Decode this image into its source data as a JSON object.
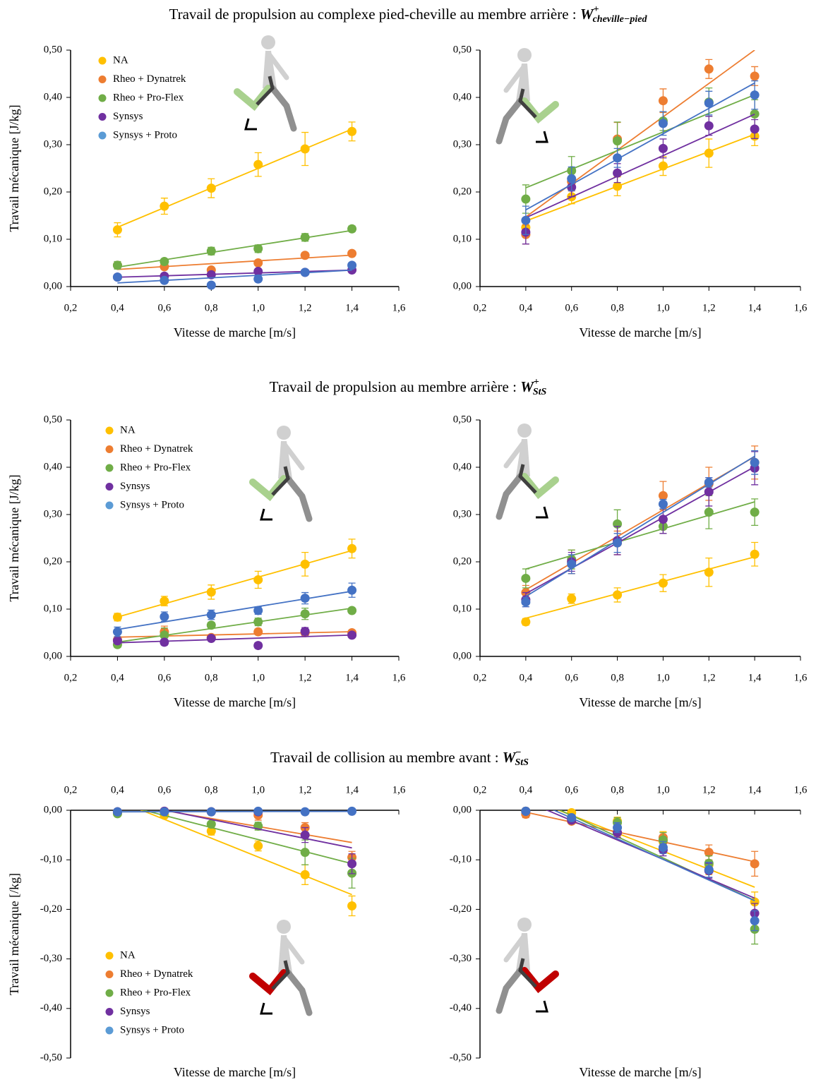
{
  "sections": [
    {
      "text": "Travail de propulsion au complexe pied-cheville au membre arrière : ",
      "symbol": "W",
      "sup": "+",
      "sub": "cheville−pied"
    },
    {
      "text": "Travail de propulsion au membre arrière : ",
      "symbol": "W",
      "sup": "+",
      "sub": "StS"
    },
    {
      "text": "Travail de collision au membre avant : ",
      "symbol": "W",
      "sup": "−",
      "sub": "StS"
    }
  ],
  "chart_data": [
    {
      "type": "scatter",
      "ylabel": "Travail mécanique [J/kg]",
      "xlabel": "Vitesse de marche [m/s]",
      "trendline": "linear",
      "legend": "upper left",
      "xtick_position": "bottom",
      "x": [
        0.4,
        0.6,
        0.8,
        1.0,
        1.2,
        1.4
      ],
      "xlim": [
        0.2,
        1.6
      ],
      "xticks": [
        {
          "value": 0.2,
          "label": "0,2"
        },
        {
          "value": 0.4,
          "label": "0,4"
        },
        {
          "value": 0.6,
          "label": "0,6"
        },
        {
          "value": 0.8,
          "label": "0,8"
        },
        {
          "value": 1.0,
          "label": "1,0"
        },
        {
          "value": 1.2,
          "label": "1,2"
        },
        {
          "value": 1.4,
          "label": "1,4"
        },
        {
          "value": 1.6,
          "label": "1,6"
        }
      ],
      "ylim": [
        0,
        0.5
      ],
      "yticks": [
        {
          "value": 0,
          "label": "0,00"
        },
        {
          "value": 0.1,
          "label": "0,10"
        },
        {
          "value": 0.2,
          "label": "0,20"
        },
        {
          "value": 0.3,
          "label": "0,30"
        },
        {
          "value": 0.4,
          "label": "0,40"
        },
        {
          "value": 0.5,
          "label": "0,50"
        }
      ],
      "series": [
        {
          "name": "NA",
          "color": "#ffc000",
          "values": [
            0.12,
            0.17,
            0.208,
            0.258,
            0.291,
            0.328
          ],
          "errors": [
            0.015,
            0.017,
            0.02,
            0.025,
            0.035,
            0.02
          ]
        },
        {
          "name": "Rheo + Dynatrek",
          "color": "#ed7d31",
          "values": [
            0.045,
            0.042,
            0.035,
            0.05,
            0.066,
            0.07
          ],
          "errors": [
            0.005,
            0.005,
            0.005,
            0.005,
            0.005,
            0.005
          ]
        },
        {
          "name": "Rheo + Pro-Flex",
          "color": "#70ad47",
          "values": [
            0.045,
            0.053,
            0.075,
            0.08,
            0.104,
            0.122
          ],
          "errors": [
            0.008,
            0.005,
            0.008,
            0.008,
            0.008,
            0.006
          ]
        },
        {
          "name": "Synsys",
          "color": "#7030a0",
          "values": [
            0.02,
            0.022,
            0.025,
            0.032,
            0.03,
            0.035
          ],
          "errors": [
            0.005,
            0.004,
            0.005,
            0.005,
            0.005,
            0.005
          ]
        },
        {
          "name": "Synsys + Proto",
          "color": "#4472c4",
          "values": [
            0.02,
            0.013,
            0.003,
            0.016,
            0.03,
            0.045
          ],
          "errors": [
            0.005,
            0.005,
            0.003,
            0.005,
            0.005,
            0.005
          ]
        }
      ]
    },
    {
      "type": "scatter",
      "xlabel": "Vitesse de marche [m/s]",
      "trendline": "linear",
      "xtick_position": "bottom",
      "x": [
        0.4,
        0.6,
        0.8,
        1.0,
        1.2,
        1.4
      ],
      "xlim": [
        0.2,
        1.6
      ],
      "xticks": [
        {
          "value": 0.2,
          "label": "0,2"
        },
        {
          "value": 0.4,
          "label": "0,4"
        },
        {
          "value": 0.6,
          "label": "0,6"
        },
        {
          "value": 0.8,
          "label": "0,8"
        },
        {
          "value": 1.0,
          "label": "1,0"
        },
        {
          "value": 1.2,
          "label": "1,2"
        },
        {
          "value": 1.4,
          "label": "1,4"
        },
        {
          "value": 1.6,
          "label": "1,6"
        }
      ],
      "ylim": [
        0,
        0.5
      ],
      "yticks": [
        {
          "value": 0,
          "label": "0,00"
        },
        {
          "value": 0.1,
          "label": "0,10"
        },
        {
          "value": 0.2,
          "label": "0,20"
        },
        {
          "value": 0.3,
          "label": "0,30"
        },
        {
          "value": 0.4,
          "label": "0,40"
        },
        {
          "value": 0.5,
          "label": "0,50"
        }
      ],
      "series": [
        {
          "color": "#ffc000",
          "values": [
            0.125,
            0.19,
            0.212,
            0.255,
            0.282,
            0.318
          ],
          "errors": [
            0.012,
            0.015,
            0.02,
            0.02,
            0.03,
            0.02
          ]
        },
        {
          "color": "#ed7d31",
          "values": [
            0.11,
            0.222,
            0.312,
            0.393,
            0.46,
            0.445
          ],
          "errors": [
            0.02,
            0.02,
            0.035,
            0.025,
            0.02,
            0.02
          ]
        },
        {
          "color": "#70ad47",
          "values": [
            0.185,
            0.245,
            0.308,
            0.35,
            0.39,
            0.365
          ],
          "errors": [
            0.03,
            0.03,
            0.04,
            0.02,
            0.03,
            0.03
          ]
        },
        {
          "color": "#7030a0",
          "values": [
            0.115,
            0.21,
            0.24,
            0.292,
            0.34,
            0.333
          ],
          "errors": [
            0.025,
            0.02,
            0.02,
            0.02,
            0.02,
            0.02
          ]
        },
        {
          "color": "#4472c4",
          "values": [
            0.14,
            0.228,
            0.272,
            0.345,
            0.388,
            0.405
          ],
          "errors": [
            0.03,
            0.025,
            0.02,
            0.025,
            0.025,
            0.03
          ]
        }
      ]
    },
    {
      "type": "scatter",
      "ylabel": "Travail mécanique [J/kg]",
      "xlabel": "Vitesse de marche [m/s]",
      "trendline": "linear",
      "legend": "upper left",
      "xtick_position": "bottom",
      "x": [
        0.4,
        0.6,
        0.8,
        1.0,
        1.2,
        1.4
      ],
      "xlim": [
        0.2,
        1.6
      ],
      "xticks": [
        {
          "value": 0.2,
          "label": "0,2"
        },
        {
          "value": 0.4,
          "label": "0,4"
        },
        {
          "value": 0.6,
          "label": "0,6"
        },
        {
          "value": 0.8,
          "label": "0,8"
        },
        {
          "value": 1.0,
          "label": "1,0"
        },
        {
          "value": 1.2,
          "label": "1,2"
        },
        {
          "value": 1.4,
          "label": "1,4"
        },
        {
          "value": 1.6,
          "label": "1,6"
        }
      ],
      "ylim": [
        0,
        0.5
      ],
      "yticks": [
        {
          "value": 0,
          "label": "0,00"
        },
        {
          "value": 0.1,
          "label": "0,10"
        },
        {
          "value": 0.2,
          "label": "0,20"
        },
        {
          "value": 0.3,
          "label": "0,30"
        },
        {
          "value": 0.4,
          "label": "0,40"
        },
        {
          "value": 0.5,
          "label": "0,50"
        }
      ],
      "series": [
        {
          "name": "NA",
          "color": "#ffc000",
          "values": [
            0.083,
            0.117,
            0.136,
            0.162,
            0.195,
            0.228
          ],
          "errors": [
            0.008,
            0.01,
            0.015,
            0.018,
            0.025,
            0.02
          ]
        },
        {
          "name": "Rheo + Dynatrek",
          "color": "#ed7d31",
          "values": [
            0.035,
            0.052,
            0.04,
            0.052,
            0.05,
            0.05
          ],
          "errors": [
            0.005,
            0.012,
            0.005,
            0.006,
            0.005,
            0.005
          ]
        },
        {
          "name": "Rheo + Pro-Flex",
          "color": "#70ad47",
          "values": [
            0.025,
            0.045,
            0.066,
            0.073,
            0.09,
            0.097
          ],
          "errors": [
            0.006,
            0.015,
            0.006,
            0.008,
            0.012,
            0.005
          ]
        },
        {
          "name": "Synsys",
          "color": "#7030a0",
          "values": [
            0.033,
            0.03,
            0.038,
            0.023,
            0.053,
            0.045
          ],
          "errors": [
            0.006,
            0.006,
            0.005,
            0.006,
            0.008,
            0.005
          ]
        },
        {
          "name": "Synsys + Proto",
          "color": "#4472c4",
          "values": [
            0.052,
            0.084,
            0.088,
            0.097,
            0.123,
            0.14
          ],
          "errors": [
            0.01,
            0.01,
            0.01,
            0.008,
            0.012,
            0.015
          ]
        }
      ]
    },
    {
      "type": "scatter",
      "xlabel": "Vitesse de marche [m/s]",
      "trendline": "linear",
      "xtick_position": "bottom",
      "x": [
        0.4,
        0.6,
        0.8,
        1.0,
        1.2,
        1.4
      ],
      "xlim": [
        0.2,
        1.6
      ],
      "xticks": [
        {
          "value": 0.2,
          "label": "0,2"
        },
        {
          "value": 0.4,
          "label": "0,4"
        },
        {
          "value": 0.6,
          "label": "0,6"
        },
        {
          "value": 0.8,
          "label": "0,8"
        },
        {
          "value": 1.0,
          "label": "1,0"
        },
        {
          "value": 1.2,
          "label": "1,2"
        },
        {
          "value": 1.4,
          "label": "1,4"
        },
        {
          "value": 1.6,
          "label": "1,6"
        }
      ],
      "ylim": [
        0,
        0.5
      ],
      "yticks": [
        {
          "value": 0,
          "label": "0,00"
        },
        {
          "value": 0.1,
          "label": "0,10"
        },
        {
          "value": 0.2,
          "label": "0,20"
        },
        {
          "value": 0.3,
          "label": "0,30"
        },
        {
          "value": 0.4,
          "label": "0,40"
        },
        {
          "value": 0.5,
          "label": "0,50"
        }
      ],
      "series": [
        {
          "color": "#ffc000",
          "values": [
            0.073,
            0.122,
            0.13,
            0.155,
            0.178,
            0.216
          ],
          "errors": [
            0.007,
            0.01,
            0.015,
            0.018,
            0.03,
            0.025
          ]
        },
        {
          "color": "#ed7d31",
          "values": [
            0.135,
            0.2,
            0.24,
            0.34,
            0.365,
            0.41
          ],
          "errors": [
            0.015,
            0.025,
            0.025,
            0.03,
            0.035,
            0.035
          ]
        },
        {
          "color": "#70ad47",
          "values": [
            0.165,
            0.205,
            0.28,
            0.275,
            0.305,
            0.305
          ],
          "errors": [
            0.02,
            0.02,
            0.03,
            0.015,
            0.035,
            0.028
          ]
        },
        {
          "color": "#7030a0",
          "values": [
            0.12,
            0.2,
            0.245,
            0.29,
            0.348,
            0.398
          ],
          "errors": [
            0.015,
            0.02,
            0.03,
            0.03,
            0.03,
            0.035
          ]
        },
        {
          "color": "#4472c4",
          "values": [
            0.115,
            0.195,
            0.24,
            0.322,
            0.368,
            0.41
          ],
          "errors": [
            0.01,
            0.02,
            0.02,
            0.01,
            0.01,
            0.025
          ]
        }
      ]
    },
    {
      "type": "scatter",
      "ylabel": "Travail mécanique [/kg]",
      "xlabel": "Vitesse de marche [m/s]",
      "trendline": "linear",
      "legend": "lower left",
      "xtick_position": "top",
      "x": [
        0.4,
        0.6,
        0.8,
        1.0,
        1.2,
        1.4
      ],
      "xlim": [
        0.2,
        1.6
      ],
      "xticks": [
        {
          "value": 0.2,
          "label": "0,2"
        },
        {
          "value": 0.4,
          "label": "0,4"
        },
        {
          "value": 0.6,
          "label": "0,6"
        },
        {
          "value": 0.8,
          "label": "0,8"
        },
        {
          "value": 1.0,
          "label": "1,0"
        },
        {
          "value": 1.2,
          "label": "1,2"
        },
        {
          "value": 1.4,
          "label": "1,4"
        },
        {
          "value": 1.6,
          "label": "1,6"
        }
      ],
      "ylim": [
        -0.5,
        0
      ],
      "yticks": [
        {
          "value": -0.5,
          "label": "-0,50"
        },
        {
          "value": -0.4,
          "label": "-0,40"
        },
        {
          "value": -0.3,
          "label": "-0,30"
        },
        {
          "value": -0.2,
          "label": "-0,20"
        },
        {
          "value": -0.1,
          "label": "-0,10"
        },
        {
          "value": 0,
          "label": "0,00"
        }
      ],
      "series": [
        {
          "name": "NA",
          "color": "#ffc000",
          "values": [
            -0.005,
            -0.01,
            -0.042,
            -0.072,
            -0.13,
            -0.193
          ],
          "errors": [
            0.003,
            0.005,
            0.008,
            0.01,
            0.02,
            0.02
          ]
        },
        {
          "name": "Rheo + Dynatrek",
          "color": "#ed7d31",
          "values": [
            -0.003,
            -0.002,
            -0.003,
            -0.01,
            -0.035,
            -0.095
          ],
          "errors": [
            0.003,
            0.002,
            0.003,
            0.01,
            0.01,
            0.012
          ]
        },
        {
          "name": "Rheo + Pro-Flex",
          "color": "#70ad47",
          "values": [
            -0.007,
            -0.003,
            -0.028,
            -0.032,
            -0.085,
            -0.127
          ],
          "errors": [
            0.003,
            0.002,
            0.005,
            0.008,
            0.025,
            0.03
          ]
        },
        {
          "name": "Synsys",
          "color": "#7030a0",
          "values": [
            -0.003,
            -0.002,
            -0.003,
            -0.003,
            -0.05,
            -0.108
          ],
          "errors": [
            0.002,
            0.002,
            0.002,
            0.003,
            0.015,
            0.02
          ]
        },
        {
          "name": "Synsys + Proto",
          "color": "#4472c4",
          "values": [
            -0.003,
            -0.003,
            -0.003,
            -0.002,
            -0.003,
            -0.002
          ],
          "errors": [
            0.002,
            0.002,
            0.002,
            0.002,
            0.002,
            0.002
          ]
        }
      ]
    },
    {
      "type": "scatter",
      "xlabel": "Vitesse de marche [m/s]",
      "trendline": "linear",
      "xtick_position": "top",
      "x": [
        0.4,
        0.6,
        0.8,
        1.0,
        1.2,
        1.4
      ],
      "xlim": [
        0.2,
        1.6
      ],
      "xticks": [
        {
          "value": 0.2,
          "label": "0,2"
        },
        {
          "value": 0.4,
          "label": "0,4"
        },
        {
          "value": 0.6,
          "label": "0,6"
        },
        {
          "value": 0.8,
          "label": "0,8"
        },
        {
          "value": 1.0,
          "label": "1,0"
        },
        {
          "value": 1.2,
          "label": "1,2"
        },
        {
          "value": 1.4,
          "label": "1,4"
        },
        {
          "value": 1.6,
          "label": "1,6"
        }
      ],
      "ylim": [
        -0.5,
        0
      ],
      "yticks": [
        {
          "value": -0.5,
          "label": "-0,50"
        },
        {
          "value": -0.4,
          "label": "-0,40"
        },
        {
          "value": -0.3,
          "label": "-0,30"
        },
        {
          "value": -0.2,
          "label": "-0,20"
        },
        {
          "value": -0.1,
          "label": "-0,10"
        },
        {
          "value": 0,
          "label": "0,00"
        }
      ],
      "series": [
        {
          "color": "#ffc000",
          "values": [
            -0.002,
            -0.005,
            -0.022,
            -0.063,
            -0.11,
            -0.185
          ],
          "errors": [
            0.002,
            0.005,
            0.008,
            0.02,
            0.02,
            0.02
          ]
        },
        {
          "color": "#ed7d31",
          "values": [
            -0.008,
            -0.022,
            -0.045,
            -0.055,
            -0.085,
            -0.108
          ],
          "errors": [
            0.007,
            0.005,
            0.008,
            0.01,
            0.015,
            0.025
          ]
        },
        {
          "color": "#70ad47",
          "values": [
            -0.002,
            -0.015,
            -0.025,
            -0.06,
            -0.107,
            -0.24
          ],
          "errors": [
            0.002,
            0.005,
            0.01,
            0.015,
            0.015,
            0.03
          ]
        },
        {
          "color": "#7030a0",
          "values": [
            -0.002,
            -0.02,
            -0.045,
            -0.08,
            -0.122,
            -0.208
          ],
          "errors": [
            0.002,
            0.005,
            0.01,
            0.012,
            0.015,
            0.02
          ]
        },
        {
          "color": "#4472c4",
          "values": [
            -0.002,
            -0.015,
            -0.035,
            -0.075,
            -0.12,
            -0.223
          ],
          "errors": [
            0.002,
            0.005,
            0.01,
            0.012,
            0.015,
            0.02
          ]
        }
      ]
    }
  ]
}
